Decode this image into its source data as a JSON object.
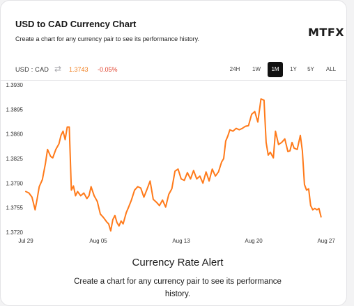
{
  "header": {
    "title": "USD to CAD Currency Chart",
    "subtitle": "Create a chart for any currency pair to see its performance history.",
    "logo_text": "MTFX"
  },
  "toolbar": {
    "pair": "USD : CAD",
    "rate": "1.3743",
    "change": "-0.05%",
    "ranges": [
      {
        "label": "24H",
        "active": false
      },
      {
        "label": "1W",
        "active": false
      },
      {
        "label": "1M",
        "active": true
      },
      {
        "label": "1Y",
        "active": false
      },
      {
        "label": "5Y",
        "active": false
      },
      {
        "label": "ALL",
        "active": false
      }
    ]
  },
  "colors": {
    "line": "#ff7a1a",
    "active_range": "#111111",
    "rate": "#f07f1f",
    "change": "#e0412c"
  },
  "chart_data": {
    "type": "line",
    "title": "",
    "xlabel": "",
    "ylabel": "",
    "ylim": [
      1.372,
      1.393
    ],
    "yticks": [
      "1.3930",
      "1.3895",
      "1.3860",
      "1.3825",
      "1.3790",
      "1.3755",
      "1.3720"
    ],
    "yticks_values": [
      1.393,
      1.3895,
      1.386,
      1.3825,
      1.379,
      1.3755,
      1.372
    ],
    "xlim": [
      0,
      30
    ],
    "xticks": [
      {
        "label": "Jul 29",
        "x": 0
      },
      {
        "label": "Aug 05",
        "x": 7
      },
      {
        "label": "Aug 13",
        "x": 15
      },
      {
        "label": "Aug 20",
        "x": 22
      },
      {
        "label": "Aug 27",
        "x": 29
      }
    ],
    "grid": false,
    "series": [
      {
        "values": [
          [
            0,
            1.3778
          ],
          [
            0.3,
            1.3776
          ],
          [
            0.6,
            1.377
          ],
          [
            0.9,
            1.3752
          ],
          [
            1.1,
            1.3768
          ],
          [
            1.3,
            1.3785
          ],
          [
            1.6,
            1.3795
          ],
          [
            1.9,
            1.3818
          ],
          [
            2.1,
            1.3838
          ],
          [
            2.4,
            1.3828
          ],
          [
            2.6,
            1.3826
          ],
          [
            2.9,
            1.3838
          ],
          [
            3.2,
            1.3846
          ],
          [
            3.4,
            1.3858
          ],
          [
            3.6,
            1.3864
          ],
          [
            3.8,
            1.3852
          ],
          [
            4.0,
            1.387
          ],
          [
            4.2,
            1.387
          ],
          [
            4.4,
            1.378
          ],
          [
            4.6,
            1.3786
          ],
          [
            4.8,
            1.3772
          ],
          [
            5.0,
            1.3778
          ],
          [
            5.3,
            1.3772
          ],
          [
            5.6,
            1.3776
          ],
          [
            5.9,
            1.3768
          ],
          [
            6.1,
            1.3772
          ],
          [
            6.3,
            1.3785
          ],
          [
            6.6,
            1.3772
          ],
          [
            6.9,
            1.3764
          ],
          [
            7.2,
            1.3746
          ],
          [
            7.5,
            1.3741
          ],
          [
            7.8,
            1.3735
          ],
          [
            8.0,
            1.3732
          ],
          [
            8.2,
            1.3722
          ],
          [
            8.4,
            1.3738
          ],
          [
            8.6,
            1.3744
          ],
          [
            8.8,
            1.3734
          ],
          [
            9.0,
            1.3729
          ],
          [
            9.2,
            1.3736
          ],
          [
            9.4,
            1.3732
          ],
          [
            9.7,
            1.3748
          ],
          [
            9.9,
            1.3755
          ],
          [
            10.2,
            1.3766
          ],
          [
            10.5,
            1.378
          ],
          [
            10.8,
            1.3785
          ],
          [
            11.1,
            1.3783
          ],
          [
            11.4,
            1.377
          ],
          [
            11.7,
            1.3781
          ],
          [
            12.0,
            1.3793
          ],
          [
            12.3,
            1.3767
          ],
          [
            12.6,
            1.3763
          ],
          [
            12.9,
            1.3758
          ],
          [
            13.2,
            1.3766
          ],
          [
            13.5,
            1.3756
          ],
          [
            13.8,
            1.3774
          ],
          [
            14.1,
            1.3782
          ],
          [
            14.4,
            1.3807
          ],
          [
            14.7,
            1.381
          ],
          [
            15.0,
            1.3796
          ],
          [
            15.3,
            1.3794
          ],
          [
            15.6,
            1.3805
          ],
          [
            15.9,
            1.3796
          ],
          [
            16.2,
            1.3808
          ],
          [
            16.5,
            1.3796
          ],
          [
            16.8,
            1.38
          ],
          [
            17.1,
            1.379
          ],
          [
            17.4,
            1.3806
          ],
          [
            17.7,
            1.3793
          ],
          [
            18.0,
            1.381
          ],
          [
            18.3,
            1.38
          ],
          [
            18.6,
            1.3806
          ],
          [
            18.9,
            1.382
          ],
          [
            19.1,
            1.3825
          ],
          [
            19.3,
            1.385
          ],
          [
            19.5,
            1.3857
          ],
          [
            19.7,
            1.3866
          ],
          [
            20.0,
            1.3864
          ],
          [
            20.3,
            1.3868
          ],
          [
            20.6,
            1.3866
          ],
          [
            20.9,
            1.3868
          ],
          [
            21.2,
            1.3871
          ],
          [
            21.5,
            1.3872
          ],
          [
            21.8,
            1.3888
          ],
          [
            22.1,
            1.3892
          ],
          [
            22.4,
            1.3877
          ],
          [
            22.7,
            1.391
          ],
          [
            23.0,
            1.3908
          ],
          [
            23.2,
            1.3848
          ],
          [
            23.4,
            1.383
          ],
          [
            23.6,
            1.3834
          ],
          [
            23.9,
            1.3826
          ],
          [
            24.1,
            1.3864
          ],
          [
            24.4,
            1.3845
          ],
          [
            24.7,
            1.3848
          ],
          [
            25.0,
            1.3853
          ],
          [
            25.3,
            1.3835
          ],
          [
            25.5,
            1.3836
          ],
          [
            25.7,
            1.3848
          ],
          [
            25.9,
            1.384
          ],
          [
            26.2,
            1.3838
          ],
          [
            26.5,
            1.3858
          ],
          [
            26.7,
            1.3836
          ],
          [
            26.9,
            1.3788
          ],
          [
            27.1,
            1.378
          ],
          [
            27.3,
            1.3782
          ],
          [
            27.5,
            1.3758
          ],
          [
            27.7,
            1.3752
          ],
          [
            27.9,
            1.3754
          ],
          [
            28.1,
            1.3752
          ],
          [
            28.3,
            1.3754
          ],
          [
            28.5,
            1.3742
          ]
        ]
      }
    ]
  },
  "footer": {
    "headline": "Currency Rate Alert",
    "description": "Create a chart for any currency pair to see its performance history."
  }
}
